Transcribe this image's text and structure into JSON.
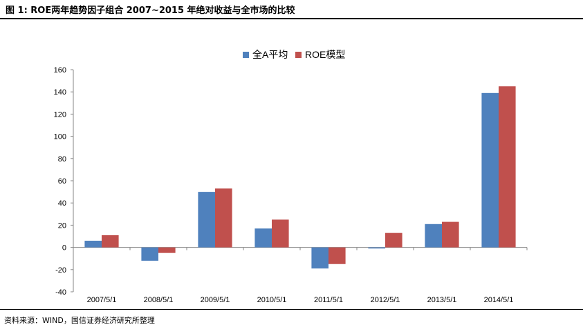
{
  "header": {
    "title": "图 1:  ROE两年趋势因子组合 2007~2015 年绝对收益与全市场的比较"
  },
  "footer": {
    "source": "资料来源：WIND，国信证券经济研究所整理"
  },
  "colors": {
    "series_a": "#4F81BD",
    "series_b": "#C0504D"
  },
  "chart_data": {
    "type": "bar",
    "categories": [
      "2007/5/1",
      "2008/5/1",
      "2009/5/1",
      "2010/5/1",
      "2011/5/1",
      "2012/5/1",
      "2013/5/1",
      "2014/5/1"
    ],
    "series": [
      {
        "name": "全A平均",
        "values": [
          6,
          -12,
          50,
          17,
          -19,
          -1,
          21,
          139
        ]
      },
      {
        "name": "ROE模型",
        "values": [
          11,
          -5,
          53,
          25,
          -15,
          13,
          23,
          145
        ]
      }
    ],
    "ylim": [
      -40,
      160
    ],
    "yticks": [
      -40,
      -20,
      0,
      20,
      40,
      60,
      80,
      100,
      120,
      140,
      160
    ],
    "title": "",
    "xlabel": "",
    "ylabel": "",
    "legend": "top-center",
    "grid": false
  }
}
